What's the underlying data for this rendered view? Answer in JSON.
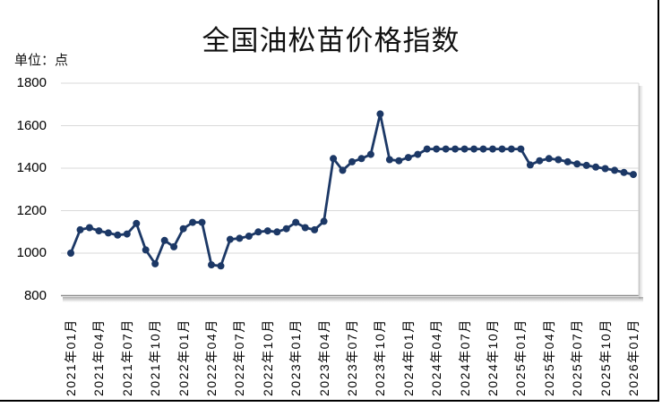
{
  "chart": {
    "title": "全国油松苗价格指数",
    "unit_label": "单位：点"
  },
  "chart_data": {
    "type": "line",
    "title": "全国油松苗价格指数",
    "ylabel": "单位：点",
    "xlabel": "",
    "ylim": [
      800,
      1800
    ],
    "yticks": [
      800,
      1000,
      1200,
      1400,
      1600,
      1800
    ],
    "xtick_every": 3,
    "grid": true,
    "legend_position": "none",
    "line_color": "#1c3866",
    "marker": "circle",
    "x": [
      "2021年01月",
      "2021年02月",
      "2021年03月",
      "2021年04月",
      "2021年05月",
      "2021年06月",
      "2021年07月",
      "2021年08月",
      "2021年09月",
      "2021年10月",
      "2021年11月",
      "2021年12月",
      "2022年01月",
      "2022年02月",
      "2022年03月",
      "2022年04月",
      "2022年05月",
      "2022年06月",
      "2022年07月",
      "2022年08月",
      "2022年09月",
      "2022年10月",
      "2022年11月",
      "2022年12月",
      "2023年01月",
      "2023年02月",
      "2023年03月",
      "2023年04月",
      "2023年05月",
      "2023年06月",
      "2023年07月",
      "2023年08月",
      "2023年09月",
      "2023年10月",
      "2023年11月",
      "2023年12月",
      "2024年01月",
      "2024年02月",
      "2024年03月",
      "2024年04月",
      "2024年05月",
      "2024年06月",
      "2024年07月",
      "2024年08月",
      "2024年09月",
      "2024年10月",
      "2024年11月",
      "2024年12月",
      "2025年01月",
      "2025年02月",
      "2025年03月",
      "2025年04月",
      "2025年05月",
      "2025年06月",
      "2025年07月",
      "2025年08月",
      "2025年09月",
      "2025年10月",
      "2025年11月",
      "2025年12月",
      "2026年01月"
    ],
    "series": [
      {
        "name": "全国油松苗价格指数",
        "values": [
          1000,
          1110,
          1120,
          1105,
          1095,
          1085,
          1090,
          1140,
          1015,
          950,
          1060,
          1030,
          1115,
          1145,
          1145,
          945,
          940,
          1065,
          1070,
          1080,
          1100,
          1105,
          1100,
          1115,
          1145,
          1120,
          1110,
          1150,
          1445,
          1390,
          1430,
          1445,
          1465,
          1655,
          1440,
          1435,
          1450,
          1465,
          1490,
          1490,
          1490,
          1490,
          1490,
          1490,
          1490,
          1490,
          1490,
          1490,
          1490,
          1415,
          1435,
          1445,
          1440,
          1430,
          1420,
          1413,
          1405,
          1398,
          1390,
          1380,
          1370
        ]
      }
    ]
  }
}
